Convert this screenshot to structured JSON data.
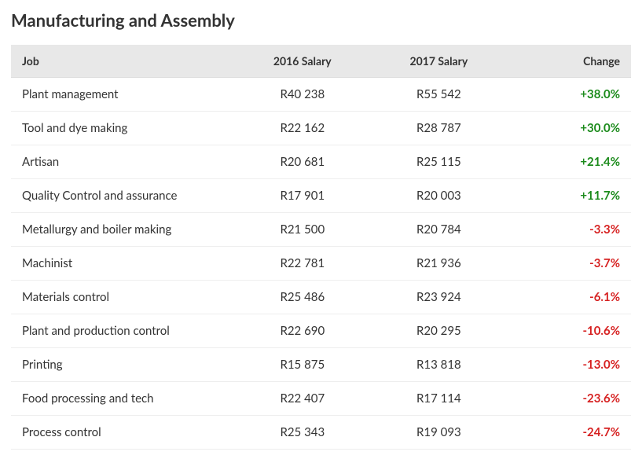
{
  "title": "Manufacturing and Assembly",
  "table": {
    "columns": {
      "job": "Job",
      "salary_2016": "2016 Salary",
      "salary_2017": "2017 Salary",
      "change": "Change"
    },
    "colors": {
      "header_bg": "#e8e8e8",
      "row_border": "#eeeeee",
      "text": "#333333",
      "positive": "#1a8a1a",
      "negative": "#d62020"
    },
    "fontsize": {
      "title": 22,
      "header": 14,
      "cell": 15
    },
    "rows": [
      {
        "job": "Plant management",
        "salary_2016": "R40 238",
        "salary_2017": "R55 542",
        "change": "+38.0%",
        "change_value": 38.0
      },
      {
        "job": "Tool and dye making",
        "salary_2016": "R22 162",
        "salary_2017": "R28 787",
        "change": "+30.0%",
        "change_value": 30.0
      },
      {
        "job": "Artisan",
        "salary_2016": "R20 681",
        "salary_2017": "R25 115",
        "change": "+21.4%",
        "change_value": 21.4
      },
      {
        "job": "Quality Control and assurance",
        "salary_2016": "R17 901",
        "salary_2017": "R20 003",
        "change": "+11.7%",
        "change_value": 11.7
      },
      {
        "job": "Metallurgy and boiler making",
        "salary_2016": "R21 500",
        "salary_2017": "R20 784",
        "change": "-3.3%",
        "change_value": -3.3
      },
      {
        "job": "Machinist",
        "salary_2016": "R22 781",
        "salary_2017": "R21 936",
        "change": "-3.7%",
        "change_value": -3.7
      },
      {
        "job": "Materials control",
        "salary_2016": "R25 486",
        "salary_2017": "R23 924",
        "change": "-6.1%",
        "change_value": -6.1
      },
      {
        "job": "Plant and production control",
        "salary_2016": "R22 690",
        "salary_2017": "R20 295",
        "change": "-10.6%",
        "change_value": -10.6
      },
      {
        "job": "Printing",
        "salary_2016": "R15 875",
        "salary_2017": "R13 818",
        "change": "-13.0%",
        "change_value": -13.0
      },
      {
        "job": "Food processing and tech",
        "salary_2016": "R22 407",
        "salary_2017": "R17 114",
        "change": "-23.6%",
        "change_value": -23.6
      },
      {
        "job": "Process control",
        "salary_2016": "R25 343",
        "salary_2017": "R19 093",
        "change": "-24.7%",
        "change_value": -24.7
      }
    ]
  }
}
